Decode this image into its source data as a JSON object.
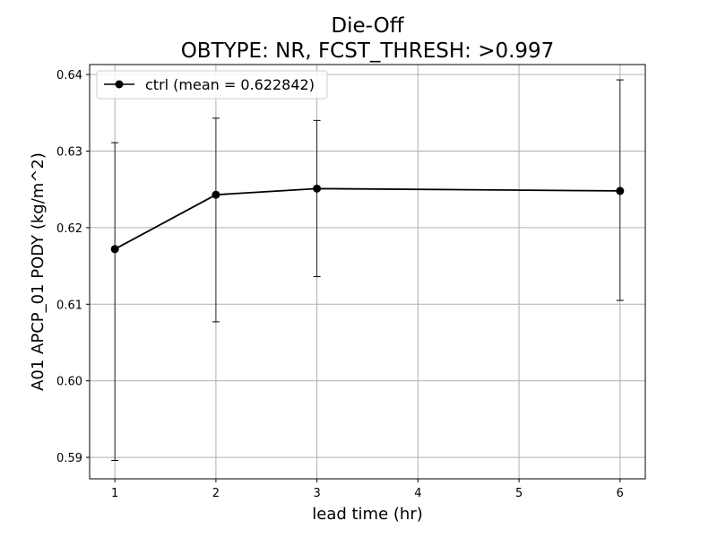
{
  "chart_data": {
    "type": "line",
    "title": "Die-Off",
    "subtitle": "OBTYPE: NR,  FCST_THRESH: >0.997",
    "xlabel": "lead time (hr)",
    "ylabel": "A01 APCP_01 PODY (kg/m^2)",
    "xlim": [
      0.75,
      6.25
    ],
    "ylim": [
      0.5872,
      0.6413
    ],
    "xticks": [
      1,
      2,
      3,
      4,
      5,
      6
    ],
    "yticks": [
      0.59,
      0.6,
      0.61,
      0.62,
      0.63,
      0.64
    ],
    "ytick_labels": [
      "0.59",
      "0.60",
      "0.61",
      "0.62",
      "0.63",
      "0.64"
    ],
    "grid": true,
    "legend_position": "top-left",
    "series": [
      {
        "name": "ctrl (mean = 0.622842)",
        "color": "#000000",
        "x": [
          1,
          2,
          3,
          6
        ],
        "y": [
          0.6172,
          0.6243,
          0.6251,
          0.6248
        ],
        "err_low": [
          0.5896,
          0.6077,
          0.6136,
          0.6105
        ],
        "err_high": [
          0.6311,
          0.6343,
          0.634,
          0.6393
        ]
      }
    ]
  }
}
